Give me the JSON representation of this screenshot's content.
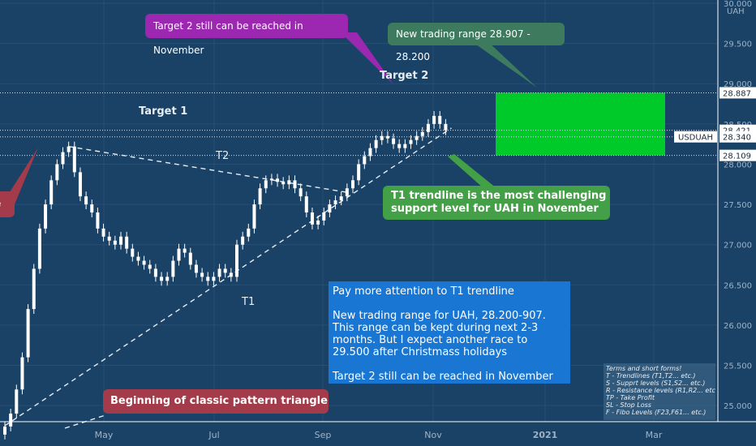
{
  "chart_data": {
    "type": "candlestick",
    "symbol": "USDUAH",
    "unit": "UAH",
    "ylim": [
      24.8,
      30.0
    ],
    "y_ticks": [
      25.0,
      25.5,
      26.0,
      26.5,
      27.0,
      27.5,
      28.0,
      28.5,
      29.0,
      29.5,
      30.0
    ],
    "y_tick_labels": [
      "25.000",
      "25.500",
      "26.000",
      "26.500",
      "27.000",
      "27.500",
      "28.000",
      "28.500",
      "29.000",
      "29.500",
      "30.000"
    ],
    "x_labels": [
      "May",
      "Jul",
      "Sep",
      "Nov",
      "2021",
      "Mar"
    ],
    "series": [
      {
        "name": "USDUAH",
        "close": [
          24.74,
          24.9,
          25.2,
          25.6,
          26.2,
          26.7,
          27.2,
          27.5,
          27.8,
          28.0,
          28.15,
          28.22,
          27.9,
          27.6,
          27.5,
          27.4,
          27.2,
          27.1,
          27.05,
          27.0,
          27.1,
          26.95,
          26.85,
          26.8,
          26.75,
          26.7,
          26.6,
          26.55,
          26.6,
          26.8,
          26.95,
          26.9,
          26.75,
          26.65,
          26.6,
          26.55,
          26.6,
          26.7,
          26.65,
          26.6,
          27.0,
          27.1,
          27.2,
          27.5,
          27.7,
          27.8,
          27.82,
          27.78,
          27.75,
          27.8,
          27.7,
          27.6,
          27.4,
          27.25,
          27.3,
          27.4,
          27.5,
          27.55,
          27.6,
          27.7,
          27.8,
          28.0,
          28.1,
          28.2,
          28.3,
          28.35,
          28.32,
          28.25,
          28.2,
          28.25,
          28.3,
          28.35,
          28.4,
          28.5,
          28.6,
          28.5,
          28.42
        ]
      }
    ],
    "price_levels": [
      {
        "label": "28.887",
        "value": 28.887,
        "style": "dotted"
      },
      {
        "label": "28.421",
        "value": 28.421,
        "style": "dotted"
      },
      {
        "label": "28.340",
        "value": 28.34,
        "style": "dotted",
        "tag": "USDUAH"
      },
      {
        "label": "28.109",
        "value": 28.109,
        "style": "dotted"
      }
    ],
    "trendlines": [
      {
        "name": "T1",
        "from": [
          0,
          24.75
        ],
        "to": [
          77,
          28.45
        ]
      },
      {
        "name": "T2",
        "from": [
          11,
          28.22
        ],
        "to": [
          59,
          27.65
        ]
      }
    ],
    "zone": {
      "from": 28.109,
      "to": 28.887
    },
    "colors": {
      "background": "#1a4266",
      "candle": "#ffffff",
      "zone": "#00c92a",
      "grid": "#274f73"
    }
  },
  "annotations": {
    "target_2_top": "Target 2 still can be reached in November",
    "trading_range": "New trading range 28.907 - 28.200",
    "target1": "Target 1",
    "target2": "Target 2",
    "t2": "T2",
    "t1": "T1",
    "t1_support": [
      "T1 trendline is the most challenging",
      "support level for UAH in November"
    ],
    "left_edge": "le",
    "triangle": "Beginning of classic pattern triangle"
  },
  "note": {
    "line1": "Pay more attention to T1 trendline",
    "para": [
      "New trading range for UAH, 28.200-907.",
      "This range can be kept during next 2-3",
      "months. But I expect another race to",
      "29.500 after Christmass holidays"
    ],
    "line_last": "Target 2 still can be reached in November"
  },
  "legend": {
    "title": "Terms and short forms!",
    "items": [
      "T - Trendlines (T1,T2... etc.)",
      "S - Supprt levels (S1,S2... etc.)",
      "R - Resistance levels (R1,R2... etc",
      "TP - Take Profit",
      "SL - Stop Loss",
      "F - Fibo Levels  (F23,F61... etc.)"
    ]
  }
}
